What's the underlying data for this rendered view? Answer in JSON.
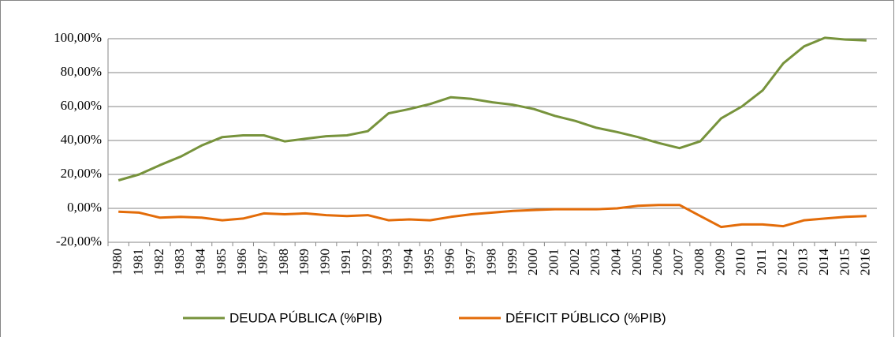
{
  "chart_data": {
    "type": "line",
    "categories": [
      "1980",
      "1981",
      "1982",
      "1983",
      "1984",
      "1985",
      "1986",
      "1987",
      "1988",
      "1989",
      "1990",
      "1991",
      "1992",
      "1993",
      "1994",
      "1995",
      "1996",
      "1997",
      "1998",
      "1999",
      "2000",
      "2001",
      "2002",
      "2003",
      "2004",
      "2005",
      "2006",
      "2007",
      "2008",
      "2009",
      "2010",
      "2011",
      "2012",
      "2013",
      "2014",
      "2015",
      "2016"
    ],
    "series": [
      {
        "name": "DEUDA PÚBLICA (%PIB)",
        "color": "#77933c",
        "values": [
          16.5,
          20,
          25.5,
          30.5,
          37,
          42,
          43,
          43,
          39.5,
          41,
          42.5,
          43,
          45.5,
          56,
          58.5,
          61.5,
          65.5,
          64.5,
          62.5,
          61,
          58.5,
          54.5,
          51.5,
          47.5,
          45,
          42,
          38.5,
          35.5,
          39.5,
          53,
          60,
          69.5,
          85.5,
          95.5,
          100.5,
          99.5,
          99
        ]
      },
      {
        "name": "DÉFICIT PÚBLICO (%PIB)",
        "color": "#e36c09",
        "values": [
          -2,
          -2.5,
          -5.5,
          -5,
          -5.5,
          -7,
          -6,
          -3,
          -3.5,
          -3,
          -4,
          -4.5,
          -4,
          -7,
          -6.5,
          -7,
          -5,
          -3.5,
          -2.5,
          -1.5,
          -1,
          -0.5,
          -0.5,
          -0.5,
          0,
          1.5,
          2,
          2,
          -4.5,
          -11,
          -9.5,
          -9.5,
          -10.5,
          -7,
          -6,
          -5,
          -4.5
        ]
      }
    ],
    "ylim": [
      -20,
      100
    ],
    "yticks": [
      {
        "value": -20,
        "label": "-20,00%"
      },
      {
        "value": 0,
        "label": "0,00%"
      },
      {
        "value": 20,
        "label": "20,00%"
      },
      {
        "value": 40,
        "label": "40,00%"
      },
      {
        "value": 60,
        "label": "60,00%"
      },
      {
        "value": 80,
        "label": "80,00%"
      },
      {
        "value": 100,
        "label": "100,00%"
      }
    ],
    "grid": true,
    "legend": "bottom"
  }
}
